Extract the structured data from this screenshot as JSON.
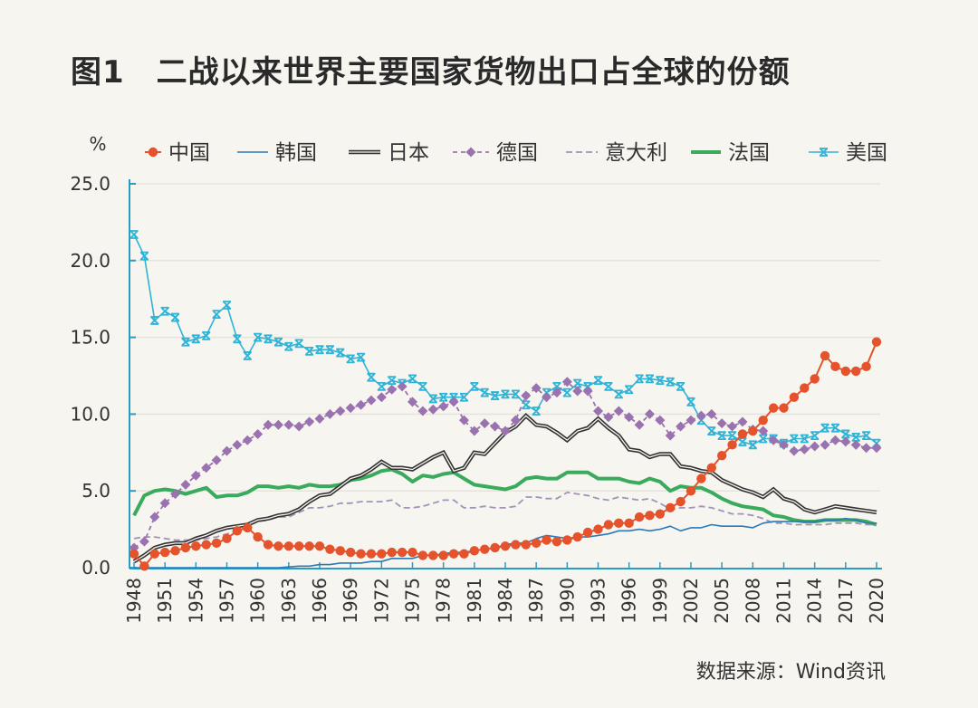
{
  "title": "图1　二战以来世界主要国家货物出口占全球的份额",
  "source": "数据来源：Wind资讯",
  "chart_data": {
    "type": "line",
    "title": "图1　二战以来世界主要国家货物出口占全球的份额",
    "ylabel": "%",
    "xlabel": "",
    "ylim": [
      0,
      25
    ],
    "xlim": [
      1948,
      2020
    ],
    "y_ticks": [
      "0.0",
      "5.0",
      "10.0",
      "15.0",
      "20.0",
      "25.0"
    ],
    "x_ticks": [
      "1948",
      "1951",
      "1954",
      "1957",
      "1960",
      "1963",
      "1966",
      "1969",
      "1972",
      "1975",
      "1978",
      "1981",
      "1984",
      "1987",
      "1990",
      "1993",
      "1996",
      "1999",
      "2002",
      "2005",
      "2008",
      "2011",
      "2014",
      "2017",
      "2020"
    ],
    "grid": true,
    "legend_position": "top",
    "x_start": 1948,
    "series": [
      {
        "name": "中国",
        "color": "#e4532c",
        "style": "line-circle",
        "values": [
          0.9,
          0.1,
          0.9,
          1.0,
          1.1,
          1.3,
          1.4,
          1.5,
          1.6,
          1.9,
          2.4,
          2.6,
          2.0,
          1.5,
          1.4,
          1.4,
          1.4,
          1.4,
          1.4,
          1.2,
          1.1,
          1.0,
          0.9,
          0.9,
          0.9,
          1.0,
          1.0,
          1.0,
          0.8,
          0.8,
          0.8,
          0.9,
          0.9,
          1.1,
          1.2,
          1.3,
          1.4,
          1.5,
          1.5,
          1.6,
          1.8,
          1.7,
          1.8,
          2.0,
          2.3,
          2.5,
          2.8,
          2.9,
          2.9,
          3.3,
          3.4,
          3.5,
          3.9,
          4.3,
          5.0,
          5.8,
          6.5,
          7.3,
          8.0,
          8.7,
          8.9,
          9.6,
          10.4,
          10.4,
          11.1,
          11.7,
          12.3,
          13.8,
          13.1,
          12.8,
          12.8,
          13.1,
          14.7
        ]
      },
      {
        "name": "韩国",
        "color": "#2a7ab8",
        "style": "line",
        "values": [
          0,
          0,
          0,
          0,
          0,
          0,
          0,
          0,
          0,
          0,
          0,
          0,
          0,
          0,
          0,
          0.05,
          0.1,
          0.1,
          0.2,
          0.2,
          0.3,
          0.3,
          0.3,
          0.4,
          0.4,
          0.6,
          0.6,
          0.6,
          0.8,
          0.8,
          0.9,
          1.0,
          1.0,
          1.1,
          1.2,
          1.3,
          1.5,
          1.6,
          1.6,
          1.9,
          2.1,
          2.0,
          1.9,
          2.0,
          2.0,
          2.1,
          2.2,
          2.4,
          2.4,
          2.5,
          2.4,
          2.5,
          2.7,
          2.4,
          2.6,
          2.6,
          2.8,
          2.7,
          2.7,
          2.7,
          2.6,
          2.9,
          3.0,
          3.0,
          3.0,
          3.0,
          3.0,
          3.1,
          3.1,
          3.2,
          3.1,
          2.9,
          2.9
        ]
      },
      {
        "name": "日本",
        "color": "#333333",
        "style": "double-line",
        "values": [
          0.4,
          0.8,
          1.3,
          1.5,
          1.6,
          1.6,
          1.9,
          2.1,
          2.4,
          2.6,
          2.7,
          2.8,
          3.1,
          3.2,
          3.4,
          3.5,
          3.8,
          4.3,
          4.7,
          4.8,
          5.3,
          5.8,
          6.0,
          6.4,
          6.9,
          6.5,
          6.5,
          6.4,
          6.8,
          7.2,
          7.5,
          6.3,
          6.5,
          7.5,
          7.4,
          8.1,
          8.8,
          9.2,
          9.9,
          9.3,
          9.2,
          8.8,
          8.3,
          8.9,
          9.1,
          9.7,
          9.1,
          8.6,
          7.7,
          7.6,
          7.2,
          7.4,
          7.4,
          6.6,
          6.5,
          6.3,
          6.2,
          5.7,
          5.4,
          5.1,
          4.9,
          4.6,
          5.1,
          4.5,
          4.3,
          3.8,
          3.6,
          3.8,
          4.0,
          3.9,
          3.8,
          3.7,
          3.6
        ]
      },
      {
        "name": "德国",
        "color": "#9b72b0",
        "style": "dashed-diamond",
        "values": [
          1.3,
          1.7,
          3.3,
          4.2,
          4.8,
          5.4,
          6.0,
          6.5,
          7.0,
          7.6,
          8.0,
          8.3,
          8.7,
          9.3,
          9.3,
          9.3,
          9.2,
          9.5,
          9.7,
          10.0,
          10.2,
          10.4,
          10.6,
          10.9,
          11.1,
          11.6,
          11.8,
          10.8,
          10.2,
          10.3,
          10.5,
          10.8,
          9.6,
          8.9,
          9.4,
          9.2,
          8.9,
          9.6,
          11.2,
          11.7,
          11.1,
          11.4,
          12.1,
          11.5,
          11.5,
          10.2,
          9.8,
          10.2,
          9.8,
          9.3,
          10.0,
          9.6,
          8.6,
          9.2,
          9.6,
          9.9,
          10.0,
          9.4,
          9.2,
          9.5,
          9.0,
          8.9,
          8.3,
          8.0,
          7.6,
          7.7,
          7.9,
          8.0,
          8.3,
          8.2,
          8.0,
          7.8,
          7.8
        ]
      },
      {
        "name": "意大利",
        "color": "#a592b8",
        "style": "dashed",
        "values": [
          1.9,
          2.0,
          2.0,
          1.9,
          1.8,
          1.8,
          1.8,
          1.9,
          2.0,
          2.2,
          2.4,
          2.7,
          3.0,
          3.1,
          3.3,
          3.3,
          3.6,
          3.9,
          3.9,
          4.0,
          4.2,
          4.2,
          4.3,
          4.3,
          4.3,
          4.4,
          3.9,
          3.9,
          4.0,
          4.2,
          4.4,
          4.4,
          3.9,
          3.9,
          4.0,
          3.9,
          3.9,
          4.0,
          4.6,
          4.6,
          4.5,
          4.5,
          4.9,
          4.8,
          4.7,
          4.5,
          4.4,
          4.6,
          4.5,
          4.4,
          4.5,
          4.2,
          3.8,
          3.9,
          3.9,
          4.0,
          3.9,
          3.7,
          3.5,
          3.5,
          3.4,
          3.2,
          2.9,
          2.9,
          2.8,
          2.8,
          2.8,
          2.8,
          2.9,
          2.9,
          2.9,
          2.8,
          2.8
        ]
      },
      {
        "name": "法国",
        "color": "#3aaa5c",
        "style": "thick-line",
        "values": [
          3.4,
          4.7,
          5.0,
          5.1,
          5.0,
          4.8,
          5.0,
          5.2,
          4.6,
          4.7,
          4.7,
          4.9,
          5.3,
          5.3,
          5.2,
          5.3,
          5.2,
          5.4,
          5.3,
          5.3,
          5.4,
          5.7,
          5.8,
          6.0,
          6.3,
          6.4,
          6.1,
          5.6,
          6.0,
          5.9,
          6.1,
          6.2,
          5.8,
          5.4,
          5.3,
          5.2,
          5.1,
          5.3,
          5.8,
          5.9,
          5.8,
          5.8,
          6.2,
          6.2,
          6.2,
          5.8,
          5.8,
          5.8,
          5.6,
          5.5,
          5.8,
          5.6,
          5.0,
          5.3,
          5.2,
          5.2,
          4.9,
          4.5,
          4.2,
          4.0,
          3.9,
          3.8,
          3.4,
          3.3,
          3.1,
          3.0,
          3.0,
          3.1,
          3.1,
          3.1,
          3.1,
          3.0,
          2.8
        ]
      },
      {
        "name": "美国",
        "color": "#2fb3d6",
        "style": "line-star",
        "values": [
          21.7,
          20.3,
          16.1,
          16.7,
          16.3,
          14.7,
          14.9,
          15.1,
          16.5,
          17.1,
          14.9,
          13.8,
          15.0,
          14.9,
          14.7,
          14.4,
          14.6,
          14.1,
          14.2,
          14.2,
          14.0,
          13.6,
          13.7,
          12.4,
          11.8,
          12.2,
          12.0,
          12.3,
          11.8,
          11.0,
          11.1,
          11.1,
          11.1,
          11.8,
          11.4,
          11.2,
          11.3,
          11.3,
          10.6,
          10.2,
          11.4,
          11.8,
          11.4,
          12.0,
          11.8,
          12.2,
          11.8,
          11.3,
          11.6,
          12.3,
          12.3,
          12.2,
          12.1,
          11.8,
          10.8,
          9.6,
          8.9,
          8.6,
          8.6,
          8.2,
          8.0,
          8.4,
          8.4,
          8.1,
          8.4,
          8.4,
          8.6,
          9.1,
          9.1,
          8.7,
          8.5,
          8.6,
          8.1
        ]
      }
    ]
  }
}
